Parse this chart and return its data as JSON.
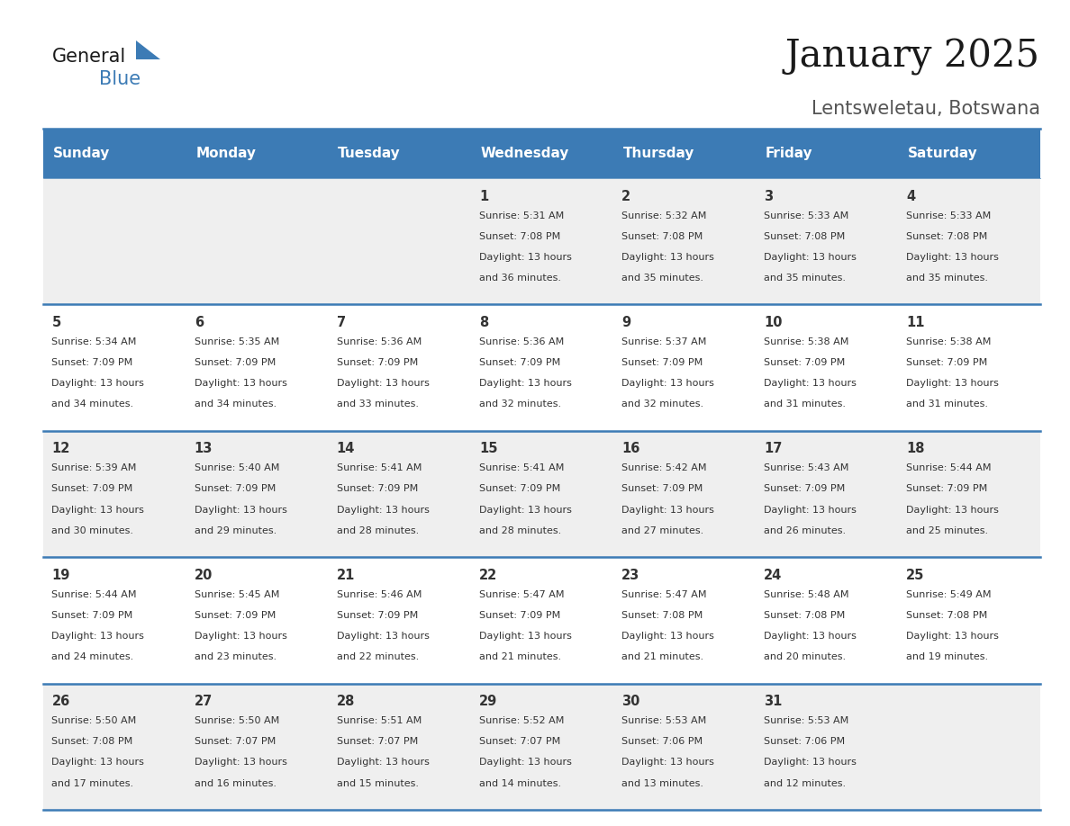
{
  "title": "January 2025",
  "subtitle": "Lentsweletau, Botswana",
  "days_of_week": [
    "Sunday",
    "Monday",
    "Tuesday",
    "Wednesday",
    "Thursday",
    "Friday",
    "Saturday"
  ],
  "header_bg": "#3C7BB5",
  "header_text_color": "#FFFFFF",
  "row_bg_odd": "#EFEFEF",
  "row_bg_even": "#FFFFFF",
  "separator_color": "#3C7BB5",
  "text_color": "#333333",
  "calendar_data": [
    [
      {
        "day": "",
        "sunrise": "",
        "sunset": "",
        "daylight_h": "",
        "daylight_m": ""
      },
      {
        "day": "",
        "sunrise": "",
        "sunset": "",
        "daylight_h": "",
        "daylight_m": ""
      },
      {
        "day": "",
        "sunrise": "",
        "sunset": "",
        "daylight_h": "",
        "daylight_m": ""
      },
      {
        "day": "1",
        "sunrise": "5:31 AM",
        "sunset": "7:08 PM",
        "daylight_h": "13 hours",
        "daylight_m": "and 36 minutes."
      },
      {
        "day": "2",
        "sunrise": "5:32 AM",
        "sunset": "7:08 PM",
        "daylight_h": "13 hours",
        "daylight_m": "and 35 minutes."
      },
      {
        "day": "3",
        "sunrise": "5:33 AM",
        "sunset": "7:08 PM",
        "daylight_h": "13 hours",
        "daylight_m": "and 35 minutes."
      },
      {
        "day": "4",
        "sunrise": "5:33 AM",
        "sunset": "7:08 PM",
        "daylight_h": "13 hours",
        "daylight_m": "and 35 minutes."
      }
    ],
    [
      {
        "day": "5",
        "sunrise": "5:34 AM",
        "sunset": "7:09 PM",
        "daylight_h": "13 hours",
        "daylight_m": "and 34 minutes."
      },
      {
        "day": "6",
        "sunrise": "5:35 AM",
        "sunset": "7:09 PM",
        "daylight_h": "13 hours",
        "daylight_m": "and 34 minutes."
      },
      {
        "day": "7",
        "sunrise": "5:36 AM",
        "sunset": "7:09 PM",
        "daylight_h": "13 hours",
        "daylight_m": "and 33 minutes."
      },
      {
        "day": "8",
        "sunrise": "5:36 AM",
        "sunset": "7:09 PM",
        "daylight_h": "13 hours",
        "daylight_m": "and 32 minutes."
      },
      {
        "day": "9",
        "sunrise": "5:37 AM",
        "sunset": "7:09 PM",
        "daylight_h": "13 hours",
        "daylight_m": "and 32 minutes."
      },
      {
        "day": "10",
        "sunrise": "5:38 AM",
        "sunset": "7:09 PM",
        "daylight_h": "13 hours",
        "daylight_m": "and 31 minutes."
      },
      {
        "day": "11",
        "sunrise": "5:38 AM",
        "sunset": "7:09 PM",
        "daylight_h": "13 hours",
        "daylight_m": "and 31 minutes."
      }
    ],
    [
      {
        "day": "12",
        "sunrise": "5:39 AM",
        "sunset": "7:09 PM",
        "daylight_h": "13 hours",
        "daylight_m": "and 30 minutes."
      },
      {
        "day": "13",
        "sunrise": "5:40 AM",
        "sunset": "7:09 PM",
        "daylight_h": "13 hours",
        "daylight_m": "and 29 minutes."
      },
      {
        "day": "14",
        "sunrise": "5:41 AM",
        "sunset": "7:09 PM",
        "daylight_h": "13 hours",
        "daylight_m": "and 28 minutes."
      },
      {
        "day": "15",
        "sunrise": "5:41 AM",
        "sunset": "7:09 PM",
        "daylight_h": "13 hours",
        "daylight_m": "and 28 minutes."
      },
      {
        "day": "16",
        "sunrise": "5:42 AM",
        "sunset": "7:09 PM",
        "daylight_h": "13 hours",
        "daylight_m": "and 27 minutes."
      },
      {
        "day": "17",
        "sunrise": "5:43 AM",
        "sunset": "7:09 PM",
        "daylight_h": "13 hours",
        "daylight_m": "and 26 minutes."
      },
      {
        "day": "18",
        "sunrise": "5:44 AM",
        "sunset": "7:09 PM",
        "daylight_h": "13 hours",
        "daylight_m": "and 25 minutes."
      }
    ],
    [
      {
        "day": "19",
        "sunrise": "5:44 AM",
        "sunset": "7:09 PM",
        "daylight_h": "13 hours",
        "daylight_m": "and 24 minutes."
      },
      {
        "day": "20",
        "sunrise": "5:45 AM",
        "sunset": "7:09 PM",
        "daylight_h": "13 hours",
        "daylight_m": "and 23 minutes."
      },
      {
        "day": "21",
        "sunrise": "5:46 AM",
        "sunset": "7:09 PM",
        "daylight_h": "13 hours",
        "daylight_m": "and 22 minutes."
      },
      {
        "day": "22",
        "sunrise": "5:47 AM",
        "sunset": "7:09 PM",
        "daylight_h": "13 hours",
        "daylight_m": "and 21 minutes."
      },
      {
        "day": "23",
        "sunrise": "5:47 AM",
        "sunset": "7:08 PM",
        "daylight_h": "13 hours",
        "daylight_m": "and 21 minutes."
      },
      {
        "day": "24",
        "sunrise": "5:48 AM",
        "sunset": "7:08 PM",
        "daylight_h": "13 hours",
        "daylight_m": "and 20 minutes."
      },
      {
        "day": "25",
        "sunrise": "5:49 AM",
        "sunset": "7:08 PM",
        "daylight_h": "13 hours",
        "daylight_m": "and 19 minutes."
      }
    ],
    [
      {
        "day": "26",
        "sunrise": "5:50 AM",
        "sunset": "7:08 PM",
        "daylight_h": "13 hours",
        "daylight_m": "and 17 minutes."
      },
      {
        "day": "27",
        "sunrise": "5:50 AM",
        "sunset": "7:07 PM",
        "daylight_h": "13 hours",
        "daylight_m": "and 16 minutes."
      },
      {
        "day": "28",
        "sunrise": "5:51 AM",
        "sunset": "7:07 PM",
        "daylight_h": "13 hours",
        "daylight_m": "and 15 minutes."
      },
      {
        "day": "29",
        "sunrise": "5:52 AM",
        "sunset": "7:07 PM",
        "daylight_h": "13 hours",
        "daylight_m": "and 14 minutes."
      },
      {
        "day": "30",
        "sunrise": "5:53 AM",
        "sunset": "7:06 PM",
        "daylight_h": "13 hours",
        "daylight_m": "and 13 minutes."
      },
      {
        "day": "31",
        "sunrise": "5:53 AM",
        "sunset": "7:06 PM",
        "daylight_h": "13 hours",
        "daylight_m": "and 12 minutes."
      },
      {
        "day": "",
        "sunrise": "",
        "sunset": "",
        "daylight_h": "",
        "daylight_m": ""
      }
    ]
  ]
}
